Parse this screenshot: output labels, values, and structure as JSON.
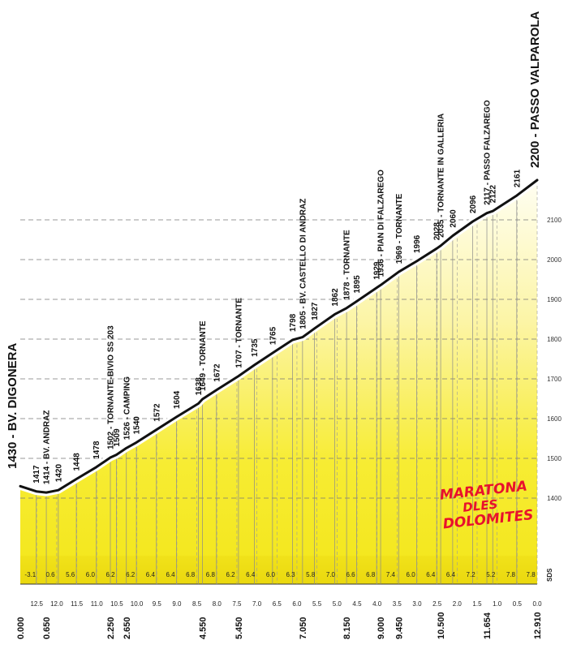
{
  "chart_data": {
    "type": "area",
    "colors": {
      "fill_light": "#fffde0",
      "fill_dark": "#f5ea1c",
      "line": "#111111",
      "grid": "#777777",
      "logo": "#e8112d"
    },
    "start_label": "1430 - BV. DIGONERA",
    "end_label": "2200 - PASSO VALPAROLA",
    "yaxis_ticks": [
      "1400",
      "1500",
      "1600",
      "1700",
      "1800",
      "1900",
      "2000",
      "2100"
    ],
    "ylim": [
      1400,
      2100
    ],
    "xlim": [
      0,
      12.91
    ],
    "profile": [
      {
        "x": 0.0,
        "y": 1430
      },
      {
        "x": 0.4,
        "y": 1417
      },
      {
        "x": 0.65,
        "y": 1414
      },
      {
        "x": 0.95,
        "y": 1420
      },
      {
        "x": 1.4,
        "y": 1448
      },
      {
        "x": 1.9,
        "y": 1478
      },
      {
        "x": 2.25,
        "y": 1502
      },
      {
        "x": 2.4,
        "y": 1509
      },
      {
        "x": 2.65,
        "y": 1526
      },
      {
        "x": 2.9,
        "y": 1540
      },
      {
        "x": 3.4,
        "y": 1572
      },
      {
        "x": 3.9,
        "y": 1604
      },
      {
        "x": 4.45,
        "y": 1638
      },
      {
        "x": 4.55,
        "y": 1649
      },
      {
        "x": 4.9,
        "y": 1672
      },
      {
        "x": 5.45,
        "y": 1707
      },
      {
        "x": 5.85,
        "y": 1735
      },
      {
        "x": 6.3,
        "y": 1765
      },
      {
        "x": 6.8,
        "y": 1798
      },
      {
        "x": 7.05,
        "y": 1805
      },
      {
        "x": 7.35,
        "y": 1827
      },
      {
        "x": 7.85,
        "y": 1862
      },
      {
        "x": 8.15,
        "y": 1878
      },
      {
        "x": 8.4,
        "y": 1895
      },
      {
        "x": 8.9,
        "y": 1929
      },
      {
        "x": 9.0,
        "y": 1936
      },
      {
        "x": 9.45,
        "y": 1969
      },
      {
        "x": 9.9,
        "y": 1996
      },
      {
        "x": 10.4,
        "y": 2028
      },
      {
        "x": 10.5,
        "y": 2035
      },
      {
        "x": 10.8,
        "y": 2060
      },
      {
        "x": 11.3,
        "y": 2096
      },
      {
        "x": 11.654,
        "y": 2117
      },
      {
        "x": 11.8,
        "y": 2122
      },
      {
        "x": 12.4,
        "y": 2161
      },
      {
        "x": 12.91,
        "y": 2200
      }
    ],
    "annotations": [
      {
        "x": 0.4,
        "y": 1417,
        "label": "1417"
      },
      {
        "x": 0.65,
        "y": 1414,
        "label": "1414 - BV. ANDRAZ"
      },
      {
        "x": 0.95,
        "y": 1420,
        "label": "1420"
      },
      {
        "x": 1.4,
        "y": 1448,
        "label": "1448"
      },
      {
        "x": 1.9,
        "y": 1478,
        "label": "1478"
      },
      {
        "x": 2.25,
        "y": 1502,
        "label": "1502 - TORNANTE-BIVIO SS 203"
      },
      {
        "x": 2.4,
        "y": 1509,
        "label": "1509"
      },
      {
        "x": 2.65,
        "y": 1526,
        "label": "1526 - CAMPING"
      },
      {
        "x": 2.9,
        "y": 1540,
        "label": "1540"
      },
      {
        "x": 3.4,
        "y": 1572,
        "label": "1572"
      },
      {
        "x": 3.9,
        "y": 1604,
        "label": "1604"
      },
      {
        "x": 4.45,
        "y": 1638,
        "label": "1638"
      },
      {
        "x": 4.55,
        "y": 1649,
        "label": "1649 - TORNANTE"
      },
      {
        "x": 4.9,
        "y": 1672,
        "label": "1672"
      },
      {
        "x": 5.45,
        "y": 1707,
        "label": "1707 - TORNANTE"
      },
      {
        "x": 5.85,
        "y": 1735,
        "label": "1735"
      },
      {
        "x": 6.3,
        "y": 1765,
        "label": "1765"
      },
      {
        "x": 6.8,
        "y": 1798,
        "label": "1798"
      },
      {
        "x": 7.05,
        "y": 1805,
        "label": "1805 - BV. CASTELLO DI ANDRAZ"
      },
      {
        "x": 7.35,
        "y": 1827,
        "label": "1827"
      },
      {
        "x": 7.85,
        "y": 1862,
        "label": "1862"
      },
      {
        "x": 8.15,
        "y": 1878,
        "label": "1878 - TORNANTE"
      },
      {
        "x": 8.4,
        "y": 1895,
        "label": "1895"
      },
      {
        "x": 8.9,
        "y": 1929,
        "label": "1929"
      },
      {
        "x": 9.0,
        "y": 1936,
        "label": "1936 - PIAN DI FALZAREGO"
      },
      {
        "x": 9.45,
        "y": 1969,
        "label": "1969 - TORNANTE"
      },
      {
        "x": 9.9,
        "y": 1996,
        "label": "1996"
      },
      {
        "x": 10.4,
        "y": 2028,
        "label": "2028"
      },
      {
        "x": 10.5,
        "y": 2035,
        "label": "2035 - TORNANTE IN GALLERIA"
      },
      {
        "x": 10.8,
        "y": 2060,
        "label": "2060"
      },
      {
        "x": 11.3,
        "y": 2096,
        "label": "2096"
      },
      {
        "x": 11.654,
        "y": 2117,
        "label": "2117 - PASSO FALZAREGO"
      },
      {
        "x": 11.8,
        "y": 2122,
        "label": "2122"
      },
      {
        "x": 12.4,
        "y": 2161,
        "label": "2161"
      }
    ],
    "gradients": [
      {
        "x": 0.25,
        "value": "-3.1"
      },
      {
        "x": 0.75,
        "value": "0.6"
      },
      {
        "x": 1.25,
        "value": "5.6"
      },
      {
        "x": 1.75,
        "value": "6.0"
      },
      {
        "x": 2.25,
        "value": "6.2"
      },
      {
        "x": 2.75,
        "value": "6.2"
      },
      {
        "x": 3.25,
        "value": "6.4"
      },
      {
        "x": 3.75,
        "value": "6.4"
      },
      {
        "x": 4.25,
        "value": "6.8"
      },
      {
        "x": 4.75,
        "value": "6.8"
      },
      {
        "x": 5.25,
        "value": "6.2"
      },
      {
        "x": 5.75,
        "value": "6.4"
      },
      {
        "x": 6.25,
        "value": "6.0"
      },
      {
        "x": 6.75,
        "value": "6.3"
      },
      {
        "x": 7.25,
        "value": "5.8"
      },
      {
        "x": 7.75,
        "value": "7.0"
      },
      {
        "x": 8.25,
        "value": "6.6"
      },
      {
        "x": 8.75,
        "value": "6.8"
      },
      {
        "x": 9.25,
        "value": "7.4"
      },
      {
        "x": 9.75,
        "value": "6.0"
      },
      {
        "x": 10.25,
        "value": "6.4"
      },
      {
        "x": 10.75,
        "value": "6.4"
      },
      {
        "x": 11.25,
        "value": "7.2"
      },
      {
        "x": 11.75,
        "value": "5.2"
      },
      {
        "x": 12.25,
        "value": "7.8"
      },
      {
        "x": 12.75,
        "value": "7.8"
      }
    ],
    "distance_to_go_ticks": [
      {
        "x": 0.41,
        "label": "12.5"
      },
      {
        "x": 0.91,
        "label": "12.0"
      },
      {
        "x": 1.41,
        "label": "11.5"
      },
      {
        "x": 1.91,
        "label": "11.0"
      },
      {
        "x": 2.41,
        "label": "10.5"
      },
      {
        "x": 2.91,
        "label": "10.0"
      },
      {
        "x": 3.41,
        "label": "9.5"
      },
      {
        "x": 3.91,
        "label": "9.0"
      },
      {
        "x": 4.41,
        "label": "8.5"
      },
      {
        "x": 4.91,
        "label": "8.0"
      },
      {
        "x": 5.41,
        "label": "7.5"
      },
      {
        "x": 5.91,
        "label": "7.0"
      },
      {
        "x": 6.41,
        "label": "6.5"
      },
      {
        "x": 6.91,
        "label": "6.0"
      },
      {
        "x": 7.41,
        "label": "5.5"
      },
      {
        "x": 7.91,
        "label": "5.0"
      },
      {
        "x": 8.41,
        "label": "4.5"
      },
      {
        "x": 8.91,
        "label": "4.0"
      },
      {
        "x": 9.41,
        "label": "3.5"
      },
      {
        "x": 9.91,
        "label": "3.0"
      },
      {
        "x": 10.41,
        "label": "2.5"
      },
      {
        "x": 10.91,
        "label": "2.0"
      },
      {
        "x": 11.41,
        "label": "1.5"
      },
      {
        "x": 11.91,
        "label": "1.0"
      },
      {
        "x": 12.41,
        "label": "0.5"
      },
      {
        "x": 12.91,
        "label": "0.0"
      }
    ],
    "distance_ticks": [
      {
        "x": 0.0,
        "label": "0.000"
      },
      {
        "x": 0.65,
        "label": "0.650"
      },
      {
        "x": 2.25,
        "label": "2.250"
      },
      {
        "x": 2.65,
        "label": "2.650"
      },
      {
        "x": 4.55,
        "label": "4.550"
      },
      {
        "x": 5.45,
        "label": "5.450"
      },
      {
        "x": 7.05,
        "label": "7.050"
      },
      {
        "x": 8.15,
        "label": "8.150"
      },
      {
        "x": 9.0,
        "label": "9.000"
      },
      {
        "x": 9.45,
        "label": "9.450"
      },
      {
        "x": 10.5,
        "label": "10.500"
      },
      {
        "x": 11.654,
        "label": "11.654"
      },
      {
        "x": 12.91,
        "label": "12.910"
      }
    ],
    "sds_label": "SDS",
    "logo_lines": [
      "MARATONA",
      "DLES",
      "DOLOMITES"
    ]
  }
}
